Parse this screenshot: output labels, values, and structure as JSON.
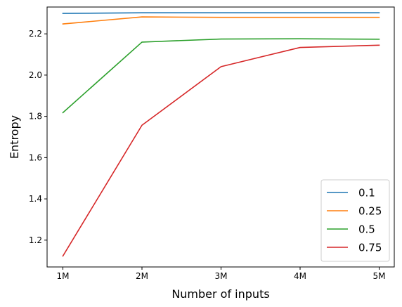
{
  "chart_data": {
    "type": "line",
    "title": "",
    "xlabel": "Number of inputs",
    "ylabel": "Entropy",
    "categories": [
      "1M",
      "2M",
      "3M",
      "4M",
      "5M"
    ],
    "ylim": [
      1.07,
      2.33
    ],
    "yticks": [
      "1.2",
      "1.4",
      "1.6",
      "1.8",
      "2.0",
      "2.2"
    ],
    "grid": false,
    "legend_position": "bottom-right",
    "series": [
      {
        "name": "0.1",
        "color": "#1f77b4",
        "values": [
          2.299,
          2.302,
          2.302,
          2.302,
          2.302
        ]
      },
      {
        "name": "0.25",
        "color": "#ff7f0e",
        "values": [
          2.248,
          2.282,
          2.28,
          2.28,
          2.28
        ]
      },
      {
        "name": "0.5",
        "color": "#2ca02c",
        "values": [
          1.818,
          2.16,
          2.175,
          2.176,
          2.174
        ]
      },
      {
        "name": "0.75",
        "color": "#d62728",
        "values": [
          1.123,
          1.757,
          2.041,
          2.134,
          2.145
        ]
      }
    ]
  }
}
